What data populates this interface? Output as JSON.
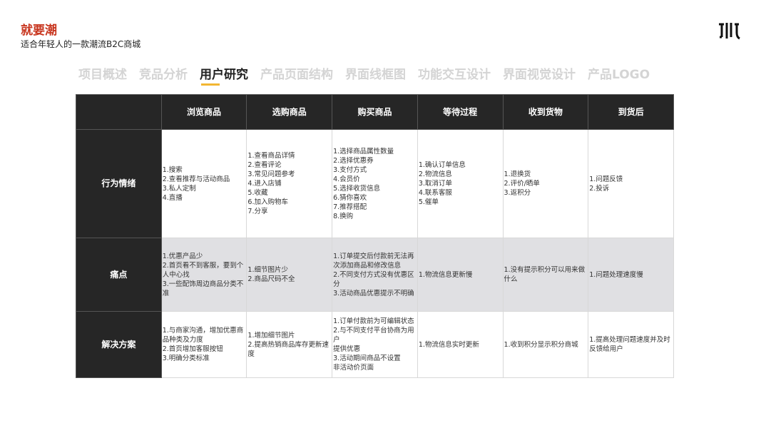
{
  "header": {
    "brand": "就要潮",
    "subtitle": "适合年轻人的一款潮流B2C商城",
    "logo_icon": "brand-logo-icon"
  },
  "tabs": [
    {
      "label": "项目概述"
    },
    {
      "label": "竞品分析"
    },
    {
      "label": "用户研究",
      "active": true
    },
    {
      "label": "产品页面结构"
    },
    {
      "label": "界面线框图"
    },
    {
      "label": "功能交互设计"
    },
    {
      "label": "界面视觉设计"
    },
    {
      "label": "产品LOGO"
    }
  ],
  "accent_color": "#f2b632",
  "brand_color": "#c8361f",
  "table": {
    "columns": [
      "浏览商品",
      "选购商品",
      "购买商品",
      "等待过程",
      "收到货物",
      "到货后"
    ],
    "rows": [
      {
        "label": "行为情绪",
        "cells": [
          [
            "1.搜索",
            "2.查看推荐与活动商品",
            "3.私人定制",
            "4.直播"
          ],
          [
            "1.查看商品详情",
            "2.查看评论",
            "3.常见问题参考",
            "4.进入店铺",
            "5.收藏",
            "6.加入购物车",
            "7.分享"
          ],
          [
            "1.选择商品属性数量",
            "2.选择优惠券",
            "3.支付方式",
            "4.会员价",
            "5.选择收货信息",
            "6.猜你喜欢",
            "7.推荐搭配",
            "8.换购"
          ],
          [
            "1.确认订单信息",
            "2.物流信息",
            "3.取消订单",
            "4.联系客服",
            "5.催单"
          ],
          [
            "1.退换货",
            "2.评价/晒单",
            "3.返积分"
          ],
          [
            "1.问题反馈",
            "2.投诉"
          ]
        ]
      },
      {
        "label": "痛点",
        "cells": [
          [
            "1.优惠产品少",
            "2.首页看不到客服，要到个人中心找",
            "3.一些配饰周边商品分类不准"
          ],
          [
            "1.细节图片少",
            "2.商品尺码不全"
          ],
          [
            "1.订单提交后付款前无法再次添加商品和修改信息",
            "2.不同支付方式没有优惠区分",
            "3.活动商品优惠提示不明确"
          ],
          [
            "1.物流信息更新慢"
          ],
          [
            "1.没有提示积分可以用来做什么"
          ],
          [
            "1.问题处理速度慢"
          ]
        ]
      },
      {
        "label": "解决方案",
        "cells": [
          [
            "1.与商家沟通，增加优惠商品种类及力度",
            "2.首页增加客服按钮",
            "3.明确分类标准"
          ],
          [
            "1.增加细节图片",
            "2.提高热销商品库存更新速度"
          ],
          [
            "1.订单付款前为可编辑状态",
            "2.与不同支付平台协商为用户",
            "提供优惠",
            "3.活动期间商品不设置",
            "非活动价页面"
          ],
          [
            "1.物流信息实时更新"
          ],
          [
            "1.收到积分显示积分商城"
          ],
          [
            "1.提高处理问题速度并及时反馈给用户"
          ]
        ]
      }
    ]
  }
}
